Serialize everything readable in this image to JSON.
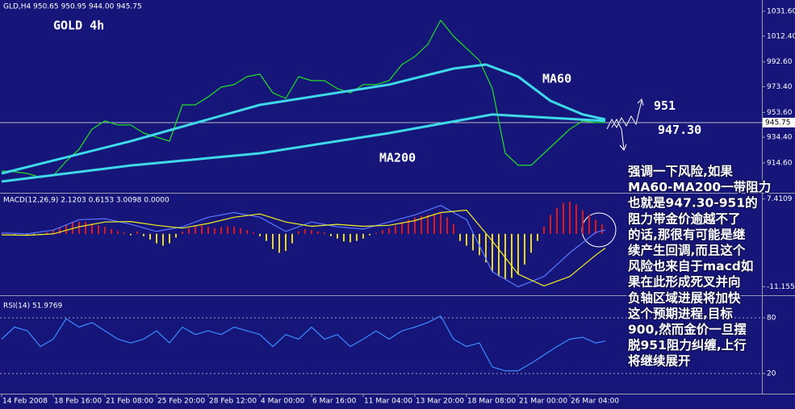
{
  "chart_data": [
    {
      "type": "line",
      "title": "GLD,H4  950.65 950.95 944.00 945.75",
      "subtitle": "GOLD 4h",
      "xlim": [
        0,
        236
      ],
      "ylim": [
        892.2,
        1040.3
      ],
      "yticks": [
        {
          "value": 1031.6,
          "label": "1031.60"
        },
        {
          "value": 1012.4,
          "label": "1012.40"
        },
        {
          "value": 992.6,
          "label": "992.60"
        },
        {
          "value": 973.4,
          "label": "973.40"
        },
        {
          "value": 953.6,
          "label": "953.60"
        },
        {
          "value": 934.4,
          "label": "934.40"
        },
        {
          "value": 914.6,
          "label": "914.60"
        }
      ],
      "current_price": 945.75,
      "levels": [
        951,
        {
          "value": 947.3,
          "label": "947.30"
        }
      ],
      "series": [
        {
          "color": "#22e022",
          "x": [
            0,
            4,
            8,
            12,
            16,
            20,
            24,
            28,
            32,
            36,
            40,
            44,
            48,
            52,
            56,
            60,
            64,
            68,
            72,
            76,
            80,
            84,
            88,
            92,
            96,
            100,
            104,
            108,
            112,
            116,
            120,
            124,
            128,
            132,
            136,
            140,
            144,
            148,
            152,
            156,
            160,
            164,
            168,
            172,
            176,
            180,
            184,
            187
          ],
          "values": [
            908.4,
            907.8,
            906.5,
            903.4,
            904.7,
            915.9,
            925.2,
            940.7,
            947,
            943.9,
            943.9,
            937.6,
            934.5,
            931.4,
            959.4,
            959.4,
            965.6,
            973.1,
            975,
            981.2,
            983.1,
            968.7,
            964.4,
            981.2,
            978.1,
            978.1,
            971.9,
            968.7,
            975,
            975,
            978.1,
            990.5,
            996.7,
            1006.1,
            1024.7,
            1012.3,
            1003,
            993.6,
            971.9,
            922.1,
            912.8,
            912.8,
            922.1,
            931.4,
            940.7,
            947,
            945.7,
            945.75
          ]
        },
        {
          "name": "MA60",
          "color": "#3fd8e8",
          "x": [
            0,
            40,
            80,
            120,
            140,
            150,
            160,
            170,
            180,
            187
          ],
          "values": [
            906.5,
            931.4,
            959.4,
            975,
            987.4,
            990.5,
            981.2,
            962.5,
            952,
            948.2
          ]
        },
        {
          "name": "MA200",
          "color": "#3fd8e8",
          "x": [
            0,
            40,
            80,
            120,
            152,
            187
          ],
          "values": [
            900.3,
            912.7,
            922.1,
            937.6,
            952,
            947
          ]
        }
      ]
    },
    {
      "type": "line",
      "title": "MACD(12,26,9) 2.1203 0.6153 3.0098 0.0000",
      "xlim": [
        0,
        236
      ],
      "ylim": [
        -12.8,
        8.5
      ],
      "yticks": [
        {
          "value": 7.4109,
          "label": "7.4109"
        },
        {
          "value": -11.1552,
          "label": "-11.1552"
        }
      ],
      "series": [
        {
          "type": "bar",
          "color": "#e01818",
          "negative_color": "#e8d820",
          "x": [
            0,
            2,
            4,
            6,
            8,
            10,
            12,
            14,
            16,
            18,
            20,
            22,
            24,
            26,
            28,
            30,
            32,
            34,
            36,
            38,
            40,
            42,
            44,
            46,
            48,
            50,
            52,
            54,
            56,
            58,
            60,
            62,
            64,
            66,
            68,
            70,
            72,
            74,
            76,
            78,
            80,
            82,
            84,
            86,
            88,
            90,
            92,
            94,
            96,
            98,
            100,
            102,
            104,
            106,
            108,
            110,
            112,
            114,
            116,
            118,
            120,
            122,
            124,
            126,
            128,
            130,
            132,
            134,
            136,
            138,
            140,
            142,
            144,
            146,
            148,
            150,
            152,
            154,
            156,
            158,
            160,
            162,
            164,
            166,
            168,
            170,
            172,
            174,
            176,
            178,
            180,
            182,
            184,
            186
          ],
          "values": [
            0.1,
            0.1,
            -0.1,
            0.1,
            -0.2,
            -0.3,
            -0.2,
            0.3,
            0.8,
            1.4,
            2.0,
            2.4,
            2.6,
            2.5,
            2.2,
            1.8,
            1.5,
            1.0,
            0.6,
            0.3,
            -0.3,
            0.5,
            -0.5,
            -1.2,
            -2.0,
            -2.5,
            -2.0,
            -0.8,
            0.5,
            1.2,
            1.6,
            1.8,
            1.5,
            1.2,
            1.4,
            1.6,
            1.5,
            1.2,
            0.8,
            0.3,
            -0.5,
            -1.5,
            -3.2,
            -4.0,
            -3.6,
            -2.0,
            0.6,
            1.0,
            0.8,
            0.5,
            0.3,
            -0.5,
            -1.0,
            -1.6,
            -1.8,
            -1.5,
            -1.0,
            -0.3,
            0.2,
            0.8,
            1.2,
            1.8,
            2.4,
            3.0,
            3.5,
            3.8,
            4.0,
            4.2,
            4.3,
            3.5,
            2.0,
            -1.5,
            -2.5,
            -3.5,
            -4.5,
            -6.0,
            -8.0,
            -9.0,
            -9.5,
            -9.3,
            -8.5,
            -6.5,
            -4.0,
            -1.5,
            1.5,
            4.0,
            5.5,
            6.5,
            6.8,
            6.2,
            5.0,
            4.0,
            3.0,
            2.0
          ]
        },
        {
          "color": "#5a78ff",
          "x": [
            0,
            8,
            16,
            24,
            32,
            40,
            48,
            56,
            64,
            72,
            80,
            88,
            96,
            104,
            112,
            120,
            128,
            136,
            144,
            152,
            160,
            168,
            176,
            184,
            187
          ],
          "values": [
            0.2,
            0.0,
            0.8,
            3.0,
            3.2,
            2.0,
            0.5,
            1.5,
            3.5,
            4.5,
            3.5,
            0.5,
            2.5,
            1.5,
            1.0,
            2.5,
            4.0,
            6.0,
            3.0,
            -8.0,
            -11.2,
            -9.0,
            -4.0,
            0.3,
            0.8
          ]
        },
        {
          "color": "#f0f020",
          "x": [
            0,
            8,
            16,
            24,
            32,
            40,
            48,
            56,
            64,
            72,
            80,
            88,
            96,
            104,
            112,
            120,
            128,
            136,
            144,
            152,
            160,
            168,
            176,
            184,
            187
          ],
          "values": [
            -0.2,
            -0.3,
            0.0,
            1.5,
            2.5,
            2.6,
            1.8,
            1.2,
            2.2,
            3.5,
            4.2,
            2.5,
            1.6,
            2.0,
            1.6,
            1.8,
            2.8,
            4.5,
            5.0,
            -1.5,
            -8.5,
            -11.0,
            -9.0,
            -4.5,
            -3.0
          ]
        }
      ]
    },
    {
      "type": "line",
      "title": "RSI(14) 51.9769",
      "xlim": [
        0,
        236
      ],
      "ylim": [
        0,
        100
      ],
      "yticks": [
        80,
        20
      ],
      "grid": true,
      "xticks": [
        {
          "value": 0,
          "label": "14 Feb 2008"
        },
        {
          "value": 16,
          "label": "18 Feb 16:00"
        },
        {
          "value": 32,
          "label": "21 Feb 08:00"
        },
        {
          "value": 48,
          "label": "25 Feb 20:00"
        },
        {
          "value": 64,
          "label": "28 Feb 12:00"
        },
        {
          "value": 80,
          "label": "4 Mar 00:00"
        },
        {
          "value": 96,
          "label": "6 Mar 16:00"
        },
        {
          "value": 112,
          "label": "11 Mar 04:00"
        },
        {
          "value": 128,
          "label": "13 Mar 20:00"
        },
        {
          "value": 144,
          "label": "18 Mar 08:00"
        },
        {
          "value": 160,
          "label": "21 Mar 00:00"
        },
        {
          "value": 176,
          "label": "26 Mar 04:00"
        }
      ],
      "series": [
        {
          "color": "#3a8cff",
          "x": [
            0,
            4,
            8,
            12,
            16,
            20,
            24,
            28,
            32,
            36,
            40,
            44,
            48,
            52,
            56,
            60,
            64,
            68,
            72,
            76,
            80,
            84,
            88,
            92,
            96,
            100,
            104,
            108,
            112,
            116,
            120,
            124,
            128,
            132,
            136,
            140,
            144,
            148,
            152,
            156,
            160,
            164,
            168,
            172,
            176,
            180,
            184,
            187
          ],
          "values": [
            57,
            70,
            66,
            49,
            57,
            79,
            70,
            75,
            66,
            57,
            53,
            57,
            66,
            53,
            70,
            62,
            66,
            62,
            70,
            66,
            62,
            49,
            62,
            57,
            70,
            57,
            62,
            49,
            57,
            66,
            57,
            66,
            70,
            75,
            82,
            57,
            49,
            53,
            27,
            23,
            23,
            31,
            40,
            49,
            57,
            59,
            53,
            55
          ]
        }
      ]
    }
  ],
  "note_lines": [
    "强调一下风险,如果",
    "MA60-MA200一带阻力",
    "也就是947.30-951的",
    "阻力带金价逾越不了",
    "的话,那很有可能是继",
    "续产生回调,而且这个",
    "风险也来自于macd如",
    "果在此形成死叉并向",
    "负轴区域进展将加快",
    "这个预期进程,目标",
    "900,然而金价一旦摆",
    "脱951阻力纠缠,上行",
    "将继续展开"
  ]
}
